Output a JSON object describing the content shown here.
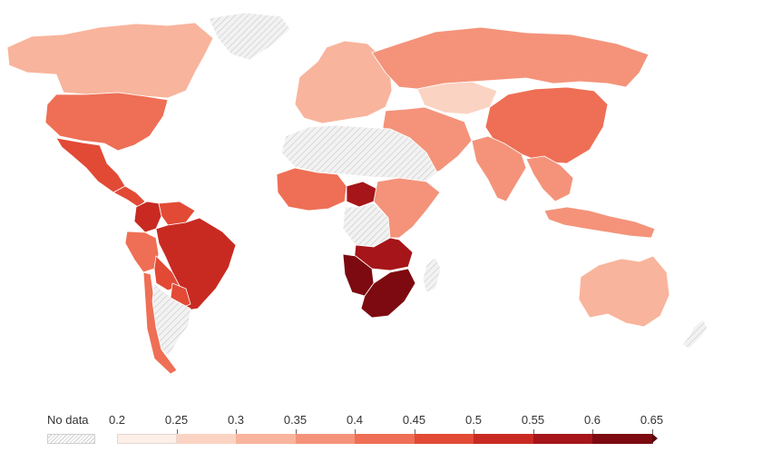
{
  "map": {
    "type": "choropleth-world",
    "colors": {
      "no_data_fill": "#efefef",
      "no_data_hatch": "#cfcfcf",
      "bins": [
        "#fdeee8",
        "#fbd3c3",
        "#f8b49c",
        "#f4937a",
        "#ee6f55",
        "#e24a35",
        "#c82a22",
        "#a51519",
        "#7c0a10"
      ],
      "arrow": "#5a0308"
    },
    "regions": [
      {
        "name": "Canada",
        "value": 0.33
      },
      {
        "name": "United States",
        "value": 0.41
      },
      {
        "name": "Mexico",
        "value": 0.46
      },
      {
        "name": "Central America",
        "value": 0.49
      },
      {
        "name": "Colombia",
        "value": 0.53
      },
      {
        "name": "Venezuela",
        "value": 0.45
      },
      {
        "name": "Brazil",
        "value": 0.53
      },
      {
        "name": "Peru",
        "value": 0.44
      },
      {
        "name": "Bolivia",
        "value": 0.45
      },
      {
        "name": "Paraguay",
        "value": 0.46
      },
      {
        "name": "Chile",
        "value": 0.44
      },
      {
        "name": "Argentina",
        "value": null
      },
      {
        "name": "Greenland",
        "value": null
      },
      {
        "name": "Europe",
        "value": 0.32
      },
      {
        "name": "Russia",
        "value": 0.37
      },
      {
        "name": "Middle East",
        "value": 0.39
      },
      {
        "name": "North Africa",
        "value": null
      },
      {
        "name": "West Africa",
        "value": 0.41
      },
      {
        "name": "Central African Republic",
        "value": 0.56
      },
      {
        "name": "Congo",
        "value": null
      },
      {
        "name": "East Africa",
        "value": 0.39
      },
      {
        "name": "Zambia",
        "value": 0.56
      },
      {
        "name": "Namibia",
        "value": 0.6
      },
      {
        "name": "South Africa",
        "value": 0.63
      },
      {
        "name": "Madagascar",
        "value": null
      },
      {
        "name": "Kazakhstan",
        "value": 0.28
      },
      {
        "name": "China",
        "value": 0.42
      },
      {
        "name": "India",
        "value": 0.36
      },
      {
        "name": "Southeast Asia",
        "value": 0.38
      },
      {
        "name": "Indonesia",
        "value": 0.39
      },
      {
        "name": "Australia",
        "value": 0.33
      },
      {
        "name": "New Zealand",
        "value": null
      }
    ]
  },
  "legend": {
    "no_data_label": "No data",
    "ticks": [
      "0.2",
      "0.25",
      "0.3",
      "0.35",
      "0.4",
      "0.45",
      "0.5",
      "0.55",
      "0.6",
      "0.65"
    ]
  }
}
